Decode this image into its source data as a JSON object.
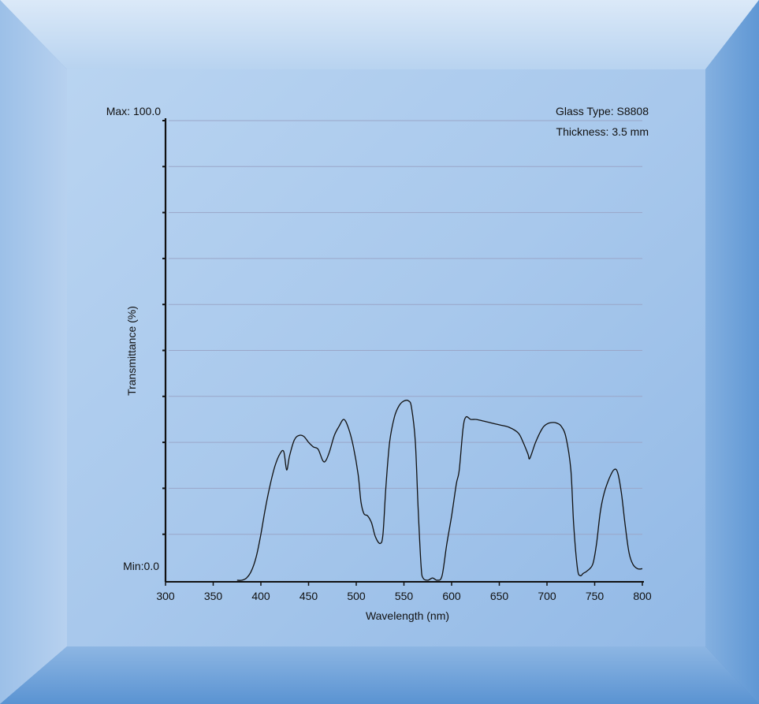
{
  "chart_data": {
    "type": "line",
    "title": "",
    "xlabel": "Wavelength (nm)",
    "ylabel": "Transmittance (%)",
    "xlim": [
      300,
      800
    ],
    "ylim": [
      0,
      100
    ],
    "xticks": [
      300,
      350,
      400,
      450,
      500,
      550,
      600,
      650,
      700,
      750,
      800
    ],
    "y_max_label": "Max: 100.0",
    "y_min_label": "Min:0.0",
    "grid": true,
    "annotations": [
      "Glass Type: S8808",
      "Thickness: 3.5 mm"
    ],
    "colors": {
      "line": "#111111",
      "grid": "#9aa6c8",
      "background": "#a9c8ec"
    },
    "series": [
      {
        "x": [
          375,
          380,
          385,
          390,
          395,
          400,
          405,
          410,
          415,
          420,
          424,
          427,
          430,
          435,
          440,
          445,
          450,
          455,
          460,
          465,
          468,
          472,
          477,
          482,
          487,
          492,
          497,
          502,
          505,
          508,
          512,
          516,
          520,
          525,
          528,
          531,
          535,
          540,
          545,
          550,
          555,
          558,
          562,
          565,
          568,
          570,
          575,
          580,
          585,
          590,
          595,
          600,
          605,
          608,
          612,
          615,
          620,
          625,
          630,
          640,
          650,
          660,
          670,
          675,
          680,
          682,
          688,
          695,
          700,
          705,
          710,
          715,
          720,
          725,
          728,
          732,
          735,
          738,
          742,
          748,
          752,
          756,
          760,
          765,
          770,
          774,
          778,
          782,
          786,
          790,
          795,
          800
        ],
        "y": [
          0,
          0,
          0.5,
          2,
          5,
          10,
          16,
          21,
          25,
          27.5,
          28,
          24,
          27,
          30.5,
          31.5,
          31.3,
          30,
          29,
          28.5,
          26,
          26,
          28,
          31.5,
          33.5,
          35,
          33,
          29,
          23,
          17,
          14.5,
          14,
          12.5,
          9.5,
          8,
          10,
          20,
          30,
          35.5,
          38,
          39,
          39,
          37.5,
          30,
          15,
          3,
          0.5,
          0,
          0.5,
          0,
          1,
          8,
          14,
          21,
          24,
          33,
          35.5,
          35,
          35,
          34.8,
          34.3,
          33.8,
          33.3,
          32,
          30,
          27.5,
          26.5,
          30,
          33,
          34,
          34.3,
          34.2,
          33.5,
          31,
          24,
          12,
          2.5,
          1,
          1.5,
          2,
          3.5,
          8,
          15,
          19,
          22,
          24,
          23.5,
          19,
          12,
          6,
          3.5,
          2.5,
          2.5
        ]
      }
    ]
  }
}
